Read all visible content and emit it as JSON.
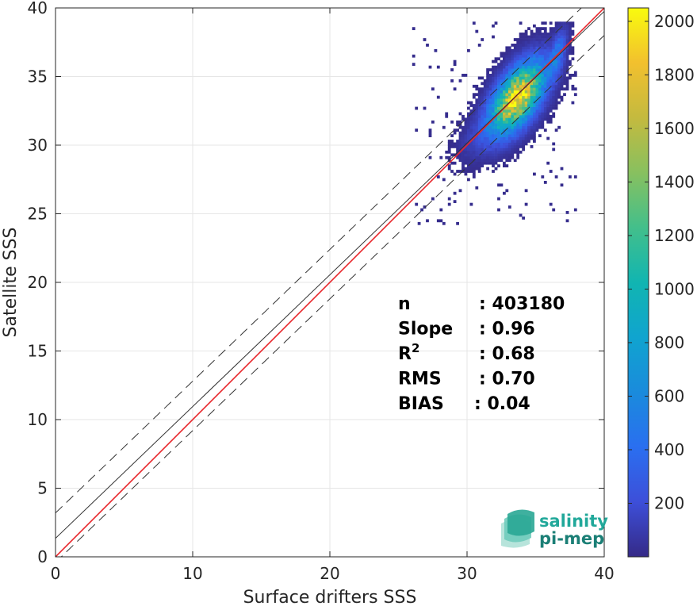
{
  "chart_data": {
    "type": "heatmap",
    "title": "",
    "xlabel": "Surface drifters SSS",
    "ylabel": "Satellite SSS",
    "xlim": [
      0,
      40
    ],
    "ylim": [
      0,
      40
    ],
    "xticks": [
      "0",
      "10",
      "20",
      "30",
      "40"
    ],
    "yticks": [
      "0",
      "5",
      "10",
      "15",
      "20",
      "25",
      "30",
      "35",
      "40"
    ],
    "grid": true,
    "colorbar": {
      "range": [
        0,
        2050
      ],
      "ticks": [
        "200",
        "400",
        "600",
        "800",
        "1000",
        "1200",
        "1400",
        "1600",
        "1800",
        "2000"
      ],
      "colormap": "parula"
    },
    "lines": [
      {
        "name": "identity",
        "slope": 1.0,
        "intercept": 0.0,
        "color": "#e8262b",
        "style": "solid"
      },
      {
        "name": "fit",
        "slope": 0.96,
        "intercept": 1.35,
        "color": "#333333",
        "style": "solid"
      },
      {
        "name": "fit-plus-2rms",
        "slope": 0.96,
        "intercept": 3.2,
        "color": "#333333",
        "style": "dashed"
      },
      {
        "name": "fit-minus-2rms",
        "slope": 0.96,
        "intercept": -0.4,
        "color": "#333333",
        "style": "dashed"
      }
    ],
    "density_clusters": [
      {
        "cx": 33.6,
        "cy": 33.4,
        "sx": 1.2,
        "sy": 1.6,
        "peak": 2000
      },
      {
        "cx": 36.5,
        "cy": 36.5,
        "sx": 0.4,
        "sy": 1.1,
        "peak": 450
      },
      {
        "cx": 31.0,
        "cy": 30.8,
        "sx": 1.1,
        "sy": 1.3,
        "peak": 120
      }
    ],
    "stats": [
      {
        "label": "n",
        "sup": "",
        "value": ": 403180"
      },
      {
        "label": "Slope",
        "sup": "",
        "value": ": 0.96"
      },
      {
        "label": "R",
        "sup": "2",
        "value": ": 0.68"
      },
      {
        "label": "RMS",
        "sup": "",
        "value": ": 0.70"
      },
      {
        "label": "BIAS",
        "sup": "",
        "value": ": 0.04"
      }
    ]
  },
  "logo": {
    "line1": "salinity",
    "line2": "pi-mep"
  },
  "colors": {
    "logo_text": "#21a89a",
    "logo_text_dark": "#1b7f76"
  }
}
